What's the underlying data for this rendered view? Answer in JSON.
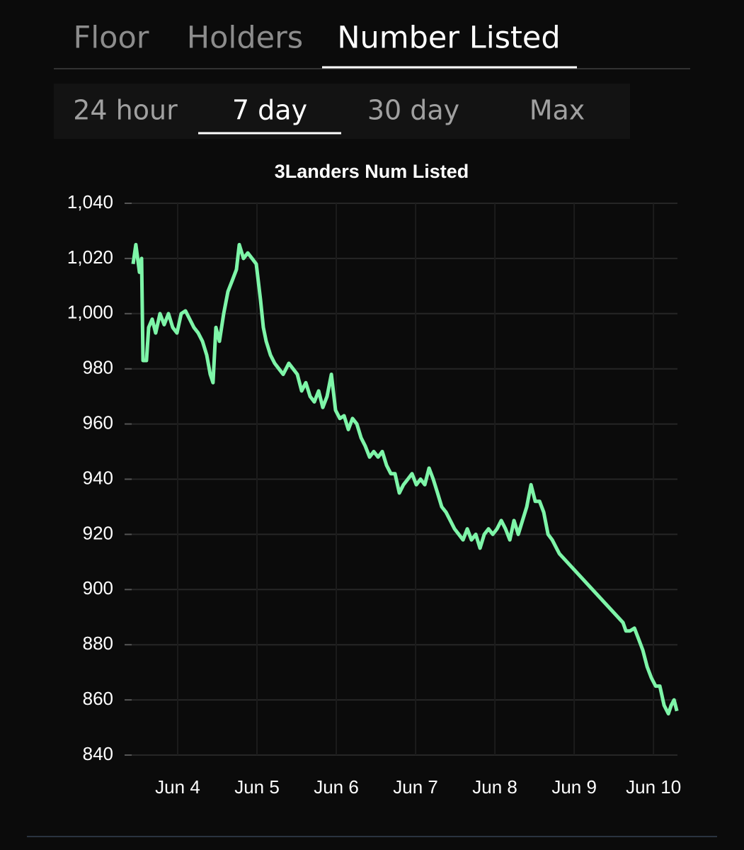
{
  "tabs": {
    "items": [
      "Floor",
      "Holders",
      "Number Listed"
    ],
    "selected": 2
  },
  "ranges": {
    "items": [
      "24 hour",
      "7 day",
      "30 day",
      "Max"
    ],
    "selected": 1
  },
  "chart_data": {
    "type": "line",
    "title": "3Landers Num Listed",
    "x": [
      3.438,
      3.473,
      3.518,
      3.545,
      3.563,
      3.607,
      3.634,
      3.679,
      3.723,
      3.777,
      3.83,
      3.884,
      3.938,
      3.991,
      4.045,
      4.098,
      4.152,
      4.205,
      4.259,
      4.313,
      4.366,
      4.411,
      4.446,
      4.482,
      4.527,
      4.58,
      4.634,
      4.688,
      4.741,
      4.777,
      4.83,
      4.884,
      4.938,
      4.991,
      5.045,
      5.08,
      5.116,
      5.17,
      5.223,
      5.277,
      5.33,
      5.402,
      5.455,
      5.509,
      5.563,
      5.616,
      5.67,
      5.723,
      5.777,
      5.83,
      5.884,
      5.938,
      5.991,
      6.045,
      6.098,
      6.152,
      6.205,
      6.259,
      6.313,
      6.366,
      6.42,
      6.473,
      6.527,
      6.58,
      6.634,
      6.688,
      6.741,
      6.795,
      6.848,
      6.902,
      6.955,
      7.009,
      7.063,
      7.116,
      7.17,
      7.223,
      7.277,
      7.33,
      7.384,
      7.438,
      7.491,
      7.545,
      7.598,
      7.652,
      7.705,
      7.759,
      7.813,
      7.866,
      7.92,
      7.973,
      8.027,
      8.08,
      8.134,
      8.188,
      8.241,
      8.295,
      8.348,
      8.402,
      8.455,
      8.509,
      8.563,
      8.616,
      8.67,
      8.723,
      8.777,
      8.813,
      9.616,
      9.652,
      9.705,
      9.759,
      9.813,
      9.866,
      9.92,
      9.973,
      10.027,
      10.08,
      10.134,
      10.188,
      10.223,
      10.259,
      10.295
    ],
    "series": [
      {
        "name": "Num Listed",
        "color": "#7ef5a8",
        "values": [
          1018,
          1025,
          1015,
          1020,
          983,
          983,
          995,
          998,
          993,
          1000,
          996,
          1000,
          995,
          993,
          1000,
          1001,
          998,
          995,
          993,
          990,
          985,
          978,
          975,
          995,
          990,
          1000,
          1008,
          1012,
          1016,
          1025,
          1020,
          1022,
          1020,
          1018,
          1005,
          995,
          990,
          985,
          982,
          980,
          978,
          982,
          980,
          978,
          972,
          975,
          970,
          968,
          972,
          966,
          970,
          978,
          965,
          962,
          963,
          958,
          962,
          960,
          955,
          952,
          948,
          950,
          948,
          950,
          945,
          942,
          942,
          935,
          938,
          940,
          942,
          938,
          940,
          938,
          944,
          940,
          935,
          930,
          928,
          925,
          922,
          920,
          918,
          922,
          918,
          920,
          915,
          920,
          922,
          920,
          922,
          925,
          922,
          918,
          925,
          920,
          925,
          930,
          938,
          932,
          932,
          928,
          920,
          918,
          915,
          913,
          888,
          885,
          885,
          886,
          882,
          878,
          872,
          868,
          865,
          865,
          858,
          855,
          858,
          860,
          856
        ]
      }
    ],
    "xlim": [
      3.42,
      10.32
    ],
    "xticks": [
      {
        "value": 4,
        "label": "Jun 4"
      },
      {
        "value": 5,
        "label": "Jun 5"
      },
      {
        "value": 6,
        "label": "Jun 6"
      },
      {
        "value": 7,
        "label": "Jun 7"
      },
      {
        "value": 8,
        "label": "Jun 8"
      },
      {
        "value": 9,
        "label": "Jun 9"
      },
      {
        "value": 10,
        "label": "Jun 10"
      }
    ],
    "ylim": [
      840,
      1040
    ],
    "yticks": [
      840,
      860,
      880,
      900,
      920,
      940,
      960,
      980,
      {
        "value": 1000,
        "label": "1,000"
      },
      {
        "value": 1020,
        "label": "1,020"
      },
      {
        "value": 1040,
        "label": "1,040"
      }
    ],
    "grid": true
  }
}
